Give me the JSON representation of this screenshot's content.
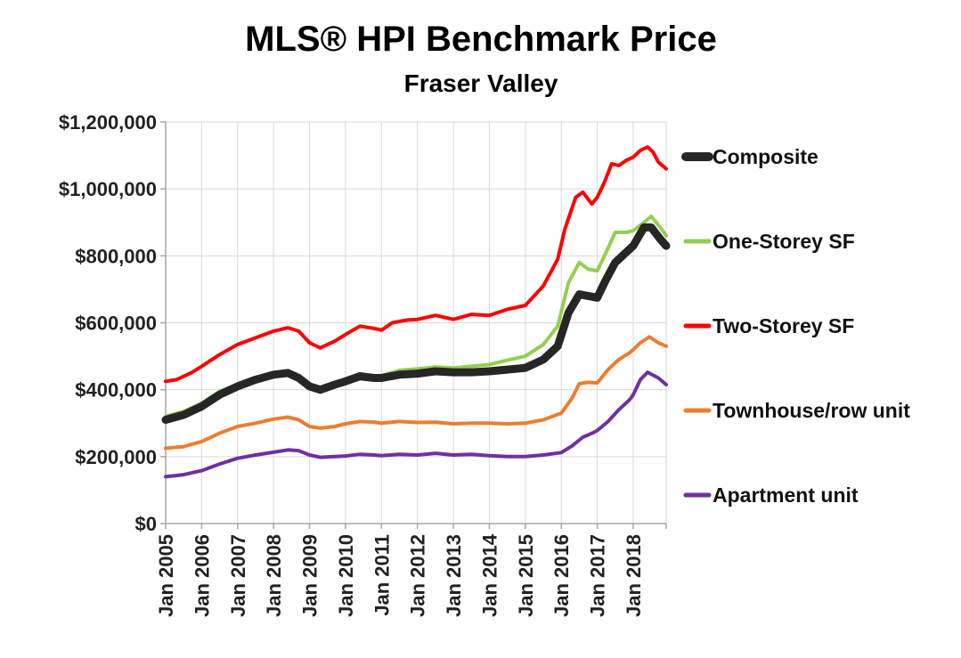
{
  "chart_data": {
    "type": "line",
    "title": "MLS® HPI Benchmark Price",
    "subtitle": "Fraser Valley",
    "xlabel": "",
    "ylabel": "",
    "x_unit": "year (decimal)",
    "x_range": [
      2005.0,
      2018.917
    ],
    "ylim": [
      0,
      1200000
    ],
    "y_ticks": [
      0,
      200000,
      400000,
      600000,
      800000,
      1000000,
      1200000
    ],
    "y_tick_labels": [
      "$0",
      "$200,000",
      "$400,000",
      "$600,000",
      "$800,000",
      "$1,000,000",
      "$1,200,000"
    ],
    "x_ticks": [
      2005,
      2006,
      2007,
      2008,
      2009,
      2010,
      2011,
      2012,
      2013,
      2014,
      2015,
      2016,
      2017,
      2018
    ],
    "x_tick_labels": [
      "Jan 2005",
      "Jan 2006",
      "Jan 2007",
      "Jan 2008",
      "Jan 2009",
      "Jan 2010",
      "Jan 2011",
      "Jan 2012",
      "Jan 2013",
      "Jan 2014",
      "Jan 2015",
      "Jan 2016",
      "Jan 2017",
      "Jan 2018"
    ],
    "grid": true,
    "legend_position": "right",
    "series": [
      {
        "name": "Composite",
        "color": "#262626",
        "x": [
          2005.0,
          2005.5,
          2006.0,
          2006.5,
          2007.0,
          2007.5,
          2008.0,
          2008.4,
          2008.7,
          2009.0,
          2009.3,
          2009.7,
          2010.0,
          2010.4,
          2010.8,
          2011.0,
          2011.5,
          2012.0,
          2012.5,
          2013.0,
          2013.5,
          2014.0,
          2014.5,
          2015.0,
          2015.5,
          2015.9,
          2016.2,
          2016.5,
          2016.75,
          2017.0,
          2017.2,
          2017.5,
          2017.8,
          2018.0,
          2018.3,
          2018.5,
          2018.75,
          2018.917
        ],
        "values": [
          310000,
          325000,
          350000,
          385000,
          410000,
          430000,
          445000,
          450000,
          435000,
          410000,
          400000,
          415000,
          425000,
          440000,
          435000,
          435000,
          445000,
          448000,
          455000,
          452000,
          452000,
          455000,
          460000,
          465000,
          490000,
          530000,
          630000,
          685000,
          680000,
          675000,
          720000,
          780000,
          810000,
          830000,
          885000,
          885000,
          850000,
          830000
        ]
      },
      {
        "name": "One-Storey SF",
        "color": "#92d050",
        "x": [
          2005.0,
          2005.5,
          2006.0,
          2006.5,
          2007.0,
          2007.5,
          2008.0,
          2008.4,
          2008.7,
          2009.0,
          2009.3,
          2009.7,
          2010.0,
          2010.4,
          2010.8,
          2011.0,
          2011.5,
          2012.0,
          2012.5,
          2013.0,
          2013.5,
          2014.0,
          2014.5,
          2015.0,
          2015.5,
          2015.9,
          2016.2,
          2016.5,
          2016.75,
          2017.0,
          2017.2,
          2017.5,
          2017.8,
          2018.0,
          2018.3,
          2018.5,
          2018.75,
          2018.917
        ],
        "values": [
          320000,
          335000,
          360000,
          395000,
          415000,
          432000,
          448000,
          455000,
          440000,
          415000,
          405000,
          420000,
          432000,
          448000,
          440000,
          442000,
          458000,
          462000,
          468000,
          465000,
          470000,
          475000,
          488000,
          500000,
          535000,
          590000,
          720000,
          780000,
          760000,
          755000,
          800000,
          870000,
          870000,
          875000,
          900000,
          918000,
          885000,
          860000
        ]
      },
      {
        "name": "Two-Storey SF",
        "color": "#ff0000",
        "x": [
          2005.0,
          2005.3,
          2005.7,
          2006.0,
          2006.5,
          2007.0,
          2007.5,
          2008.0,
          2008.4,
          2008.7,
          2009.0,
          2009.3,
          2009.7,
          2010.0,
          2010.4,
          2010.8,
          2011.0,
          2011.3,
          2011.7,
          2012.0,
          2012.5,
          2013.0,
          2013.5,
          2014.0,
          2014.5,
          2015.0,
          2015.5,
          2015.9,
          2016.1,
          2016.4,
          2016.6,
          2016.85,
          2017.0,
          2017.2,
          2017.4,
          2017.6,
          2017.8,
          2018.0,
          2018.2,
          2018.4,
          2018.55,
          2018.7,
          2018.917
        ],
        "values": [
          425000,
          430000,
          450000,
          470000,
          505000,
          535000,
          555000,
          575000,
          585000,
          575000,
          540000,
          525000,
          545000,
          565000,
          590000,
          583000,
          578000,
          600000,
          608000,
          610000,
          622000,
          610000,
          625000,
          622000,
          640000,
          652000,
          710000,
          790000,
          880000,
          975000,
          990000,
          955000,
          975000,
          1020000,
          1075000,
          1070000,
          1085000,
          1095000,
          1115000,
          1125000,
          1110000,
          1080000,
          1060000
        ]
      },
      {
        "name": "Townhouse/row unit",
        "color": "#ed7d31",
        "x": [
          2005.0,
          2005.5,
          2006.0,
          2006.5,
          2007.0,
          2007.5,
          2008.0,
          2008.4,
          2008.7,
          2009.0,
          2009.3,
          2009.7,
          2010.0,
          2010.4,
          2010.8,
          2011.0,
          2011.5,
          2012.0,
          2012.5,
          2013.0,
          2013.5,
          2014.0,
          2014.5,
          2015.0,
          2015.5,
          2016.0,
          2016.3,
          2016.5,
          2016.75,
          2017.0,
          2017.3,
          2017.6,
          2017.9,
          2018.0,
          2018.2,
          2018.45,
          2018.7,
          2018.917
        ],
        "values": [
          225000,
          230000,
          245000,
          270000,
          290000,
          300000,
          312000,
          318000,
          310000,
          290000,
          285000,
          290000,
          298000,
          305000,
          303000,
          300000,
          305000,
          302000,
          303000,
          298000,
          300000,
          300000,
          298000,
          300000,
          310000,
          330000,
          375000,
          418000,
          422000,
          420000,
          460000,
          490000,
          510000,
          520000,
          540000,
          558000,
          540000,
          530000
        ]
      },
      {
        "name": "Apartment unit",
        "color": "#7030a0",
        "x": [
          2005.0,
          2005.5,
          2006.0,
          2006.5,
          2007.0,
          2007.5,
          2008.0,
          2008.4,
          2008.7,
          2009.0,
          2009.3,
          2009.7,
          2010.0,
          2010.4,
          2010.8,
          2011.0,
          2011.5,
          2012.0,
          2012.5,
          2013.0,
          2013.5,
          2014.0,
          2014.5,
          2015.0,
          2015.5,
          2016.0,
          2016.3,
          2016.6,
          2016.9,
          2017.0,
          2017.3,
          2017.6,
          2017.9,
          2018.0,
          2018.2,
          2018.4,
          2018.7,
          2018.917
        ],
        "values": [
          140000,
          146000,
          158000,
          178000,
          195000,
          205000,
          213000,
          220000,
          218000,
          205000,
          198000,
          200000,
          202000,
          207000,
          205000,
          203000,
          207000,
          205000,
          210000,
          205000,
          207000,
          203000,
          200000,
          200000,
          205000,
          212000,
          232000,
          258000,
          272000,
          278000,
          305000,
          340000,
          370000,
          385000,
          430000,
          452000,
          435000,
          415000
        ]
      }
    ]
  }
}
